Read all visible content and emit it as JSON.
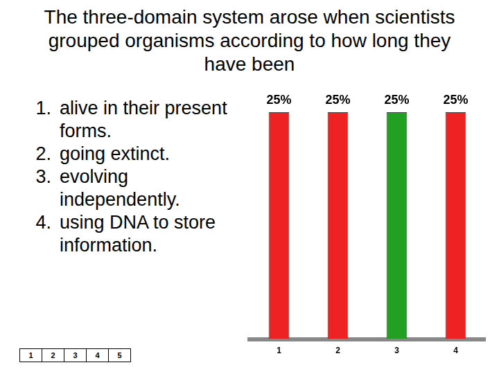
{
  "chart_data": {
    "type": "bar",
    "title": "The three-domain system arose when scientists grouped organisms according to how long they have been",
    "annotations": [
      {
        "label": "1.",
        "text": "alive in their present forms."
      },
      {
        "label": "2.",
        "text": "going extinct."
      },
      {
        "label": "3.",
        "text": "evolving independently."
      },
      {
        "label": "4.",
        "text": "using DNA to store information."
      }
    ],
    "keypad": [
      1,
      2,
      3,
      4,
      5
    ],
    "categories": [
      "1",
      "2",
      "3",
      "4"
    ],
    "values": [
      25,
      25,
      25,
      25
    ],
    "value_labels": [
      "25%",
      "25%",
      "25%",
      "25%"
    ],
    "colors": [
      "#ee2222",
      "#ee2222",
      "#22a022",
      "#ee2222"
    ],
    "ylim": [
      0,
      25
    ],
    "grid": false,
    "data_labels": true,
    "tick_labels": "x"
  }
}
